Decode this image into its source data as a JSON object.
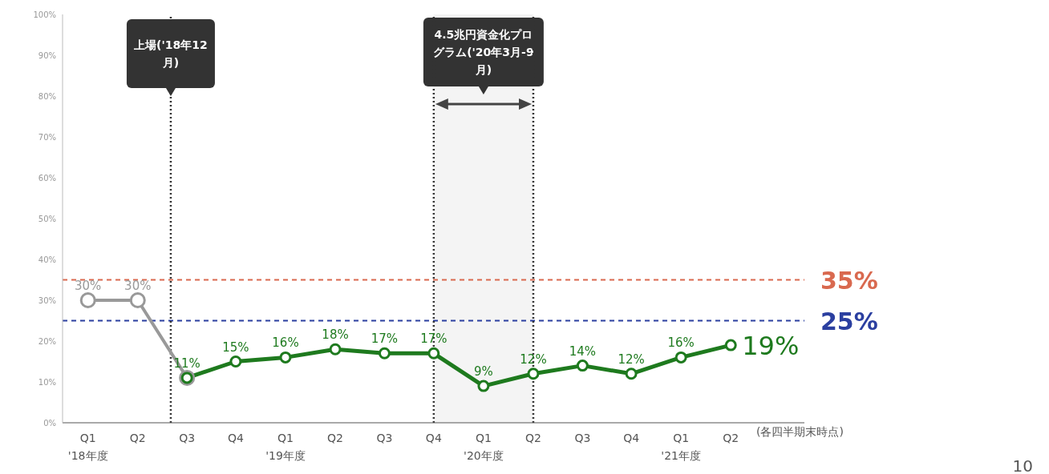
{
  "chart_data": {
    "type": "line",
    "x": [
      "2018-06",
      "2018-09",
      "2018-12",
      "2019-03",
      "2019-06",
      "2019-09",
      "2019-12",
      "2020-03",
      "2020-06",
      "2020-09",
      "2020-12",
      "2021-03",
      "2021-06",
      "2021-09"
    ],
    "xlim": [
      "2018-04-15",
      "2022-01-15"
    ],
    "xticks": [
      {
        "value": "2018-06",
        "label": "Q1\n'18年度"
      },
      {
        "value": "2018-09",
        "label": "Q2"
      },
      {
        "value": "2018-12",
        "label": "Q3"
      },
      {
        "value": "2019-03",
        "label": "Q4"
      },
      {
        "value": "2019-06",
        "label": "Q1\n'19年度"
      },
      {
        "value": "2019-09",
        "label": "Q2"
      },
      {
        "value": "2019-12",
        "label": "Q3"
      },
      {
        "value": "2020-03",
        "label": "Q4"
      },
      {
        "value": "2020-06",
        "label": "Q1\n'20年度"
      },
      {
        "value": "2020-09",
        "label": "Q2"
      },
      {
        "value": "2020-12",
        "label": "Q3"
      },
      {
        "value": "2021-03",
        "label": "Q4"
      },
      {
        "value": "2021-06",
        "label": "Q1\n'21年度"
      },
      {
        "value": "2021-09",
        "label": "Q2"
      }
    ],
    "xlabel": "(各四半期末時点)",
    "ylim": [
      0,
      100
    ],
    "yticks": [
      {
        "value": 0,
        "label": "0%"
      },
      {
        "value": 10,
        "label": "10%"
      },
      {
        "value": 20,
        "label": "20%"
      },
      {
        "value": 30,
        "label": "30%"
      },
      {
        "value": 40,
        "label": "40%"
      },
      {
        "value": 50,
        "label": "50%"
      },
      {
        "value": 60,
        "label": "60%"
      },
      {
        "value": 70,
        "label": "70%"
      },
      {
        "value": 80,
        "label": "80%"
      },
      {
        "value": 90,
        "label": "90%"
      },
      {
        "value": 100,
        "label": "100%"
      }
    ],
    "series": [
      {
        "color": "#999999",
        "values": [
          30,
          30,
          11,
          null,
          null,
          null,
          null,
          null,
          null,
          null,
          null,
          null,
          null,
          null
        ],
        "value_labels": [
          "30%",
          "30%",
          null,
          null,
          null,
          null,
          null,
          null,
          null,
          null,
          null,
          null,
          null,
          null
        ]
      },
      {
        "color": "#1e7a1e",
        "values": [
          null,
          null,
          11,
          15,
          16,
          18,
          17,
          17,
          9,
          12,
          14,
          12,
          16,
          19
        ],
        "value_labels": [
          null,
          null,
          "11%",
          "15%",
          "16%",
          "18%",
          "17%",
          "17%",
          "9%",
          "12%",
          "14%",
          "12%",
          "16%",
          "19%"
        ]
      }
    ],
    "ref_lines": [
      {
        "axis": "y",
        "value": 35,
        "label": "35%",
        "color": "#d9694f",
        "line_style": "dashed"
      },
      {
        "axis": "y",
        "value": 25,
        "label": "25%",
        "color": "#2b3fa0",
        "line_style": "dashed"
      },
      {
        "axis": "x",
        "value": "2018-11-01",
        "label": "上場('18年12月)",
        "color": "#333333",
        "line_style": "dotted"
      },
      {
        "axis": "x",
        "value": "2020-03",
        "label": null,
        "color": "#333333",
        "line_style": "dotted"
      },
      {
        "axis": "x",
        "value": "2020-09",
        "label": null,
        "color": "#333333",
        "line_style": "dotted"
      }
    ],
    "bands": [
      {
        "axis": "x",
        "from": "2020-03",
        "to": "2020-09",
        "label": "4.5兆円資金化プログラム('20年3月-9月)",
        "color": "#f4f4f4"
      }
    ],
    "annotations": [
      "10"
    ],
    "marker": "circle",
    "line_style": "solid",
    "grid": false,
    "legend": false
  }
}
